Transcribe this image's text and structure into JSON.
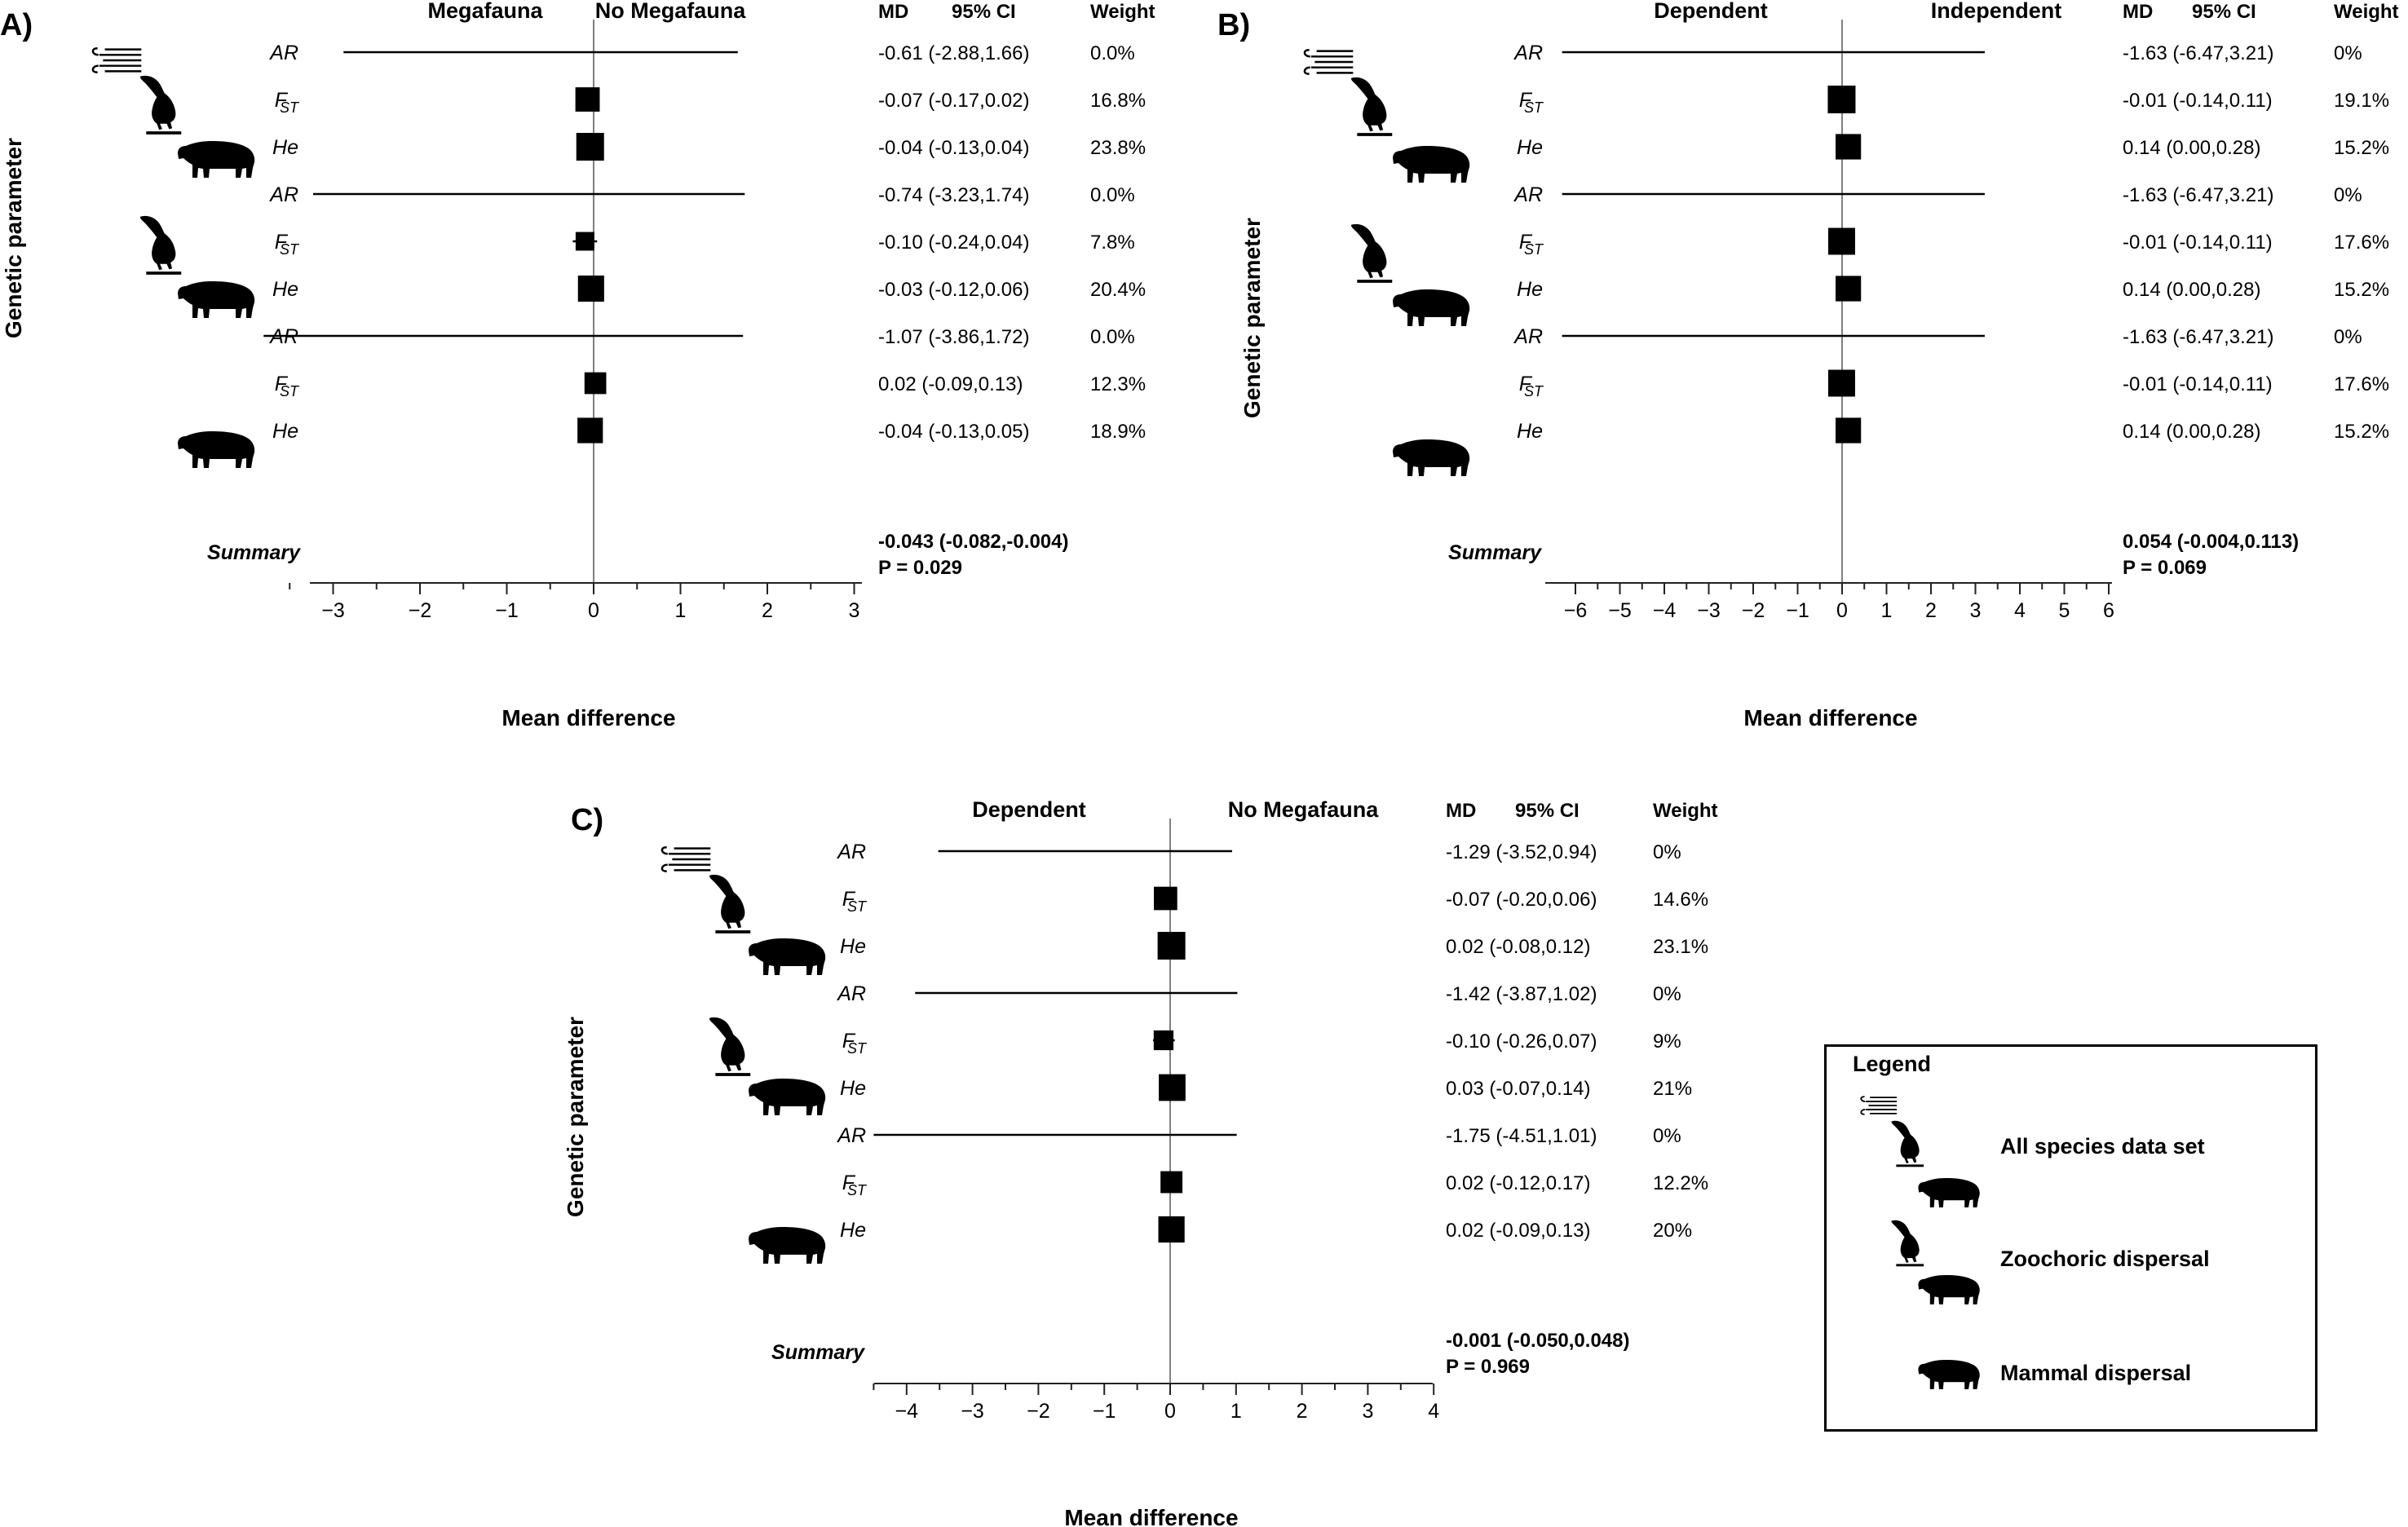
{
  "panels": [
    {
      "letter": "A)",
      "header_left": "Megafauna",
      "header_right": "No Megafauna",
      "col_md": "MD",
      "col_ci": "95% CI",
      "col_weight": "Weight",
      "ylabel": "Genetic parameter",
      "xlabel": "Mean difference",
      "summary_label": "Summary",
      "summary_text": "-0.043 (-0.082,-0.004)",
      "summary_p": "P = 0.029",
      "groups": [
        "All species data set",
        "Zoochoric dispersal",
        "Mammal dispersal"
      ]
    },
    {
      "letter": "B)",
      "header_left": "Dependent",
      "header_right": "Independent",
      "col_md": "MD",
      "col_ci": "95% CI",
      "col_weight": "Weight",
      "ylabel": "Genetic parameter",
      "xlabel": "Mean difference",
      "summary_label": "Summary",
      "summary_text": "0.054 (-0.004,0.113)",
      "summary_p": "P = 0.069",
      "groups": [
        "All species data set",
        "Zoochoric dispersal",
        "Mammal dispersal"
      ]
    },
    {
      "letter": "C)",
      "header_left": "Dependent",
      "header_right": "No Megafauna",
      "col_md": "MD",
      "col_ci": "95% CI",
      "col_weight": "Weight",
      "ylabel": "Genetic parameter",
      "xlabel": "Mean difference",
      "summary_label": "Summary",
      "summary_text": "-0.001 (-0.050,0.048)",
      "summary_p": "P = 0.969",
      "groups": [
        "All species data set",
        "Zoochoric dispersal",
        "Mammal dispersal"
      ]
    }
  ],
  "chart_data": [
    {
      "type": "forest",
      "title": "A)",
      "xlabel": "Mean difference",
      "ylabel": "Genetic parameter",
      "xlim": [
        -3.8,
        3
      ],
      "xticks": [
        -3,
        -2,
        -1,
        0,
        1,
        2,
        3
      ],
      "rows": [
        {
          "param": "AR",
          "md": -0.61,
          "lo": -2.88,
          "hi": 1.66,
          "text": "-0.61 (-2.88,1.66)",
          "weight": "0.0%"
        },
        {
          "param": "FST",
          "md": -0.07,
          "lo": -0.17,
          "hi": 0.02,
          "text": "-0.07 (-0.17,0.02)",
          "weight": "16.8%"
        },
        {
          "param": "He",
          "md": -0.04,
          "lo": -0.13,
          "hi": 0.04,
          "text": "-0.04 (-0.13,0.04)",
          "weight": "23.8%"
        },
        {
          "param": "AR",
          "md": -0.74,
          "lo": -3.23,
          "hi": 1.74,
          "text": "-0.74 (-3.23,1.74)",
          "weight": "0.0%"
        },
        {
          "param": "FST",
          "md": -0.1,
          "lo": -0.24,
          "hi": 0.04,
          "text": "-0.10 (-0.24,0.04)",
          "weight": "7.8%"
        },
        {
          "param": "He",
          "md": -0.03,
          "lo": -0.12,
          "hi": 0.06,
          "text": "-0.03 (-0.12,0.06)",
          "weight": "20.4%"
        },
        {
          "param": "AR",
          "md": -1.07,
          "lo": -3.86,
          "hi": 1.72,
          "text": "-1.07 (-3.86,1.72)",
          "weight": "0.0%"
        },
        {
          "param": "FST",
          "md": 0.02,
          "lo": -0.09,
          "hi": 0.13,
          "text": "0.02 (-0.09,0.13)",
          "weight": "12.3%"
        },
        {
          "param": "He",
          "md": -0.04,
          "lo": -0.13,
          "hi": 0.05,
          "text": "-0.04 (-0.13,0.05)",
          "weight": "18.9%"
        }
      ],
      "summary": {
        "md": -0.043,
        "lo": -0.082,
        "hi": -0.004,
        "p": 0.029
      }
    },
    {
      "type": "forest",
      "title": "B)",
      "xlabel": "Mean difference",
      "ylabel": "Genetic parameter",
      "xlim": [
        -6.3,
        6
      ],
      "xticks": [
        -6,
        -5,
        -4,
        -3,
        -2,
        -1,
        0,
        1,
        2,
        3,
        4,
        5,
        6
      ],
      "rows": [
        {
          "param": "AR",
          "md": -1.63,
          "lo": -6.47,
          "hi": 3.21,
          "text": "-1.63 (-6.47,3.21)",
          "weight": "0%"
        },
        {
          "param": "FST",
          "md": -0.01,
          "lo": -0.14,
          "hi": 0.11,
          "text": "-0.01 (-0.14,0.11)",
          "weight": "19.1%"
        },
        {
          "param": "He",
          "md": 0.14,
          "lo": 0.0,
          "hi": 0.28,
          "text": "0.14 (0.00,0.28)",
          "weight": "15.2%"
        },
        {
          "param": "AR",
          "md": -1.63,
          "lo": -6.47,
          "hi": 3.21,
          "text": "-1.63 (-6.47,3.21)",
          "weight": "0%"
        },
        {
          "param": "FST",
          "md": -0.01,
          "lo": -0.14,
          "hi": 0.11,
          "text": "-0.01 (-0.14,0.11)",
          "weight": "17.6%"
        },
        {
          "param": "He",
          "md": 0.14,
          "lo": 0.0,
          "hi": 0.28,
          "text": "0.14 (0.00,0.28)",
          "weight": "15.2%"
        },
        {
          "param": "AR",
          "md": -1.63,
          "lo": -6.47,
          "hi": 3.21,
          "text": "-1.63 (-6.47,3.21)",
          "weight": "0%"
        },
        {
          "param": "FST",
          "md": -0.01,
          "lo": -0.14,
          "hi": 0.11,
          "text": "-0.01 (-0.14,0.11)",
          "weight": "17.6%"
        },
        {
          "param": "He",
          "md": 0.14,
          "lo": 0.0,
          "hi": 0.28,
          "text": "0.14 (0.00,0.28)",
          "weight": "15.2%"
        }
      ],
      "summary": {
        "md": 0.054,
        "lo": -0.004,
        "hi": 0.113,
        "p": 0.069
      }
    },
    {
      "type": "forest",
      "title": "C)",
      "xlabel": "Mean difference",
      "ylabel": "Genetic parameter",
      "xlim": [
        -4.5,
        4
      ],
      "xticks": [
        -4,
        -3,
        -2,
        -1,
        0,
        1,
        2,
        3,
        4
      ],
      "rows": [
        {
          "param": "AR",
          "md": -1.29,
          "lo": -3.52,
          "hi": 0.94,
          "text": "-1.29 (-3.52,0.94)",
          "weight": "0%"
        },
        {
          "param": "FST",
          "md": -0.07,
          "lo": -0.2,
          "hi": 0.06,
          "text": "-0.07 (-0.20,0.06)",
          "weight": "14.6%"
        },
        {
          "param": "He",
          "md": 0.02,
          "lo": -0.08,
          "hi": 0.12,
          "text": "0.02 (-0.08,0.12)",
          "weight": "23.1%"
        },
        {
          "param": "AR",
          "md": -1.42,
          "lo": -3.87,
          "hi": 1.02,
          "text": "-1.42 (-3.87,1.02)",
          "weight": "0%"
        },
        {
          "param": "FST",
          "md": -0.1,
          "lo": -0.26,
          "hi": 0.07,
          "text": "-0.10 (-0.26,0.07)",
          "weight": "9%"
        },
        {
          "param": "He",
          "md": 0.03,
          "lo": -0.07,
          "hi": 0.14,
          "text": "0.03 (-0.07,0.14)",
          "weight": "21%"
        },
        {
          "param": "AR",
          "md": -1.75,
          "lo": -4.51,
          "hi": 1.01,
          "text": "-1.75 (-4.51,1.01)",
          "weight": "0%"
        },
        {
          "param": "FST",
          "md": 0.02,
          "lo": -0.12,
          "hi": 0.17,
          "text": "0.02 (-0.12,0.17)",
          "weight": "12.2%"
        },
        {
          "param": "He",
          "md": 0.02,
          "lo": -0.09,
          "hi": 0.13,
          "text": "0.02 (-0.09,0.13)",
          "weight": "20%"
        }
      ],
      "summary": {
        "md": -0.001,
        "lo": -0.05,
        "hi": 0.048,
        "p": 0.969
      }
    }
  ],
  "legend": {
    "title": "Legend",
    "items": [
      {
        "label": "All species data set",
        "icons": [
          "wind-icon",
          "toucan-icon",
          "tapir-icon"
        ]
      },
      {
        "label": "Zoochoric dispersal",
        "icons": [
          "toucan-icon",
          "tapir-icon"
        ]
      },
      {
        "label": "Mammal dispersal",
        "icons": [
          "tapir-icon"
        ]
      }
    ]
  },
  "colors": {
    "ink": "#000000",
    "zero_line": "#808080",
    "axis": "#222222"
  }
}
